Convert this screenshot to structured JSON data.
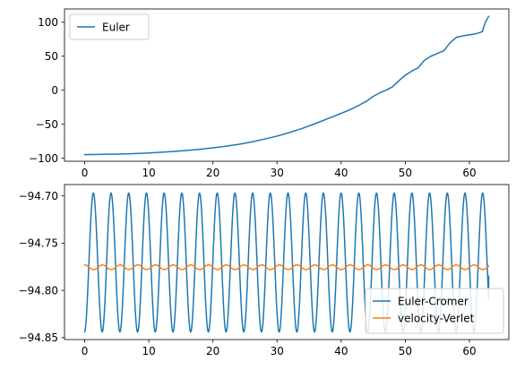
{
  "chart_data": [
    {
      "type": "line",
      "title": "",
      "xlabel": "",
      "ylabel": "",
      "xlim": [
        -3.15,
        66.15
      ],
      "ylim": [
        -104.5,
        119.5
      ],
      "xticks": [
        0,
        10,
        20,
        30,
        40,
        50,
        60
      ],
      "xtick_labels": [
        "0",
        "10",
        "20",
        "30",
        "40",
        "50",
        "60"
      ],
      "yticks": [
        -100,
        -50,
        0,
        50,
        100
      ],
      "ytick_labels": [
        "−100",
        "−50",
        "0",
        "50",
        "100"
      ],
      "grid": false,
      "legend": "upper left",
      "series": [
        {
          "name": "Euler",
          "color": "#1f77b4",
          "x": [
            0,
            2,
            4,
            6,
            8,
            10,
            12,
            14,
            16,
            18,
            20,
            22,
            24,
            26,
            28,
            30,
            32,
            34,
            36,
            38,
            40,
            42,
            43,
            44,
            45,
            46,
            47,
            48,
            49,
            50,
            51,
            52,
            53,
            54,
            55,
            56,
            57,
            58,
            59,
            60,
            61,
            62,
            62.5,
            63
          ],
          "y": [
            -94.8,
            -94.5,
            -94.2,
            -93.8,
            -93.2,
            -92.3,
            -91.2,
            -90.0,
            -88.5,
            -86.8,
            -84.8,
            -82.4,
            -79.6,
            -76.2,
            -72.0,
            -67.5,
            -62.0,
            -56.0,
            -49.0,
            -41.5,
            -34.0,
            -26.0,
            -21.0,
            -16.0,
            -9.0,
            -4.0,
            0.0,
            5.0,
            14.0,
            22.0,
            28.0,
            33.0,
            44.0,
            50.0,
            54.0,
            58.0,
            70.0,
            78.0,
            80.0,
            81.5,
            83.0,
            86.0,
            100.0,
            108.5
          ]
        }
      ]
    },
    {
      "type": "line",
      "title": "",
      "xlabel": "",
      "ylabel": "",
      "xlim": [
        -3.15,
        66.15
      ],
      "ylim": [
        -94.852,
        -94.688
      ],
      "xticks": [
        0,
        10,
        20,
        30,
        40,
        50,
        60
      ],
      "xtick_labels": [
        "0",
        "10",
        "20",
        "30",
        "40",
        "50",
        "60"
      ],
      "yticks": [
        -94.85,
        -94.8,
        -94.75,
        -94.7
      ],
      "ytick_labels": [
        "−94.85",
        "−94.80",
        "−94.75",
        "−94.70"
      ],
      "grid": false,
      "legend": "lower right",
      "series": [
        {
          "name": "Euler-Cromer",
          "color": "#1f77b4",
          "x_start": 0,
          "x_end": 63,
          "center": -94.7705,
          "amplitude": 0.0735,
          "period": 2.76,
          "phase": -1.5,
          "end_value": -94.785
        },
        {
          "name": "velocity-Verlet",
          "color": "#ff7f0e",
          "x_start": 0,
          "x_end": 63,
          "center": -94.7755,
          "amplitude": 0.0025,
          "period": 2.76,
          "phase": 1.5708
        }
      ]
    }
  ]
}
